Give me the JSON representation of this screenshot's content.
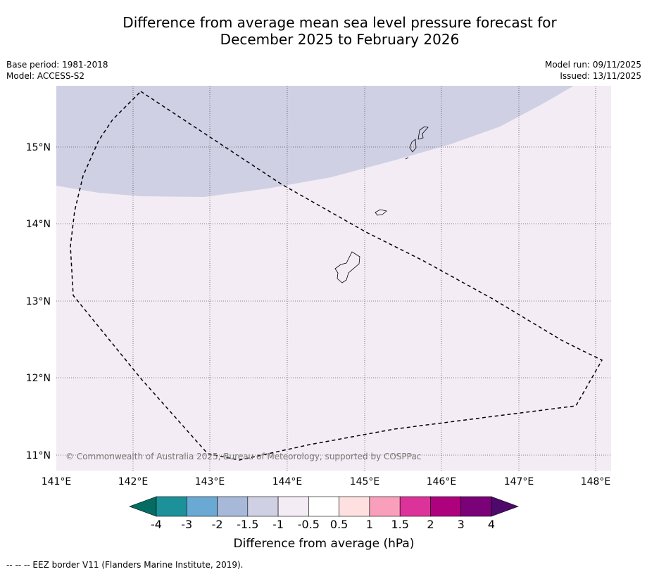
{
  "title": {
    "line1": "Difference from average mean sea level pressure forecast for",
    "line2": "December 2025 to February 2026"
  },
  "meta": {
    "base_period": "Base period: 1981-2018",
    "model": "Model: ACCESS-S2",
    "model_run": "Model run: 09/11/2025",
    "issued": "Issued: 13/11/2025"
  },
  "map": {
    "lon_labels": [
      "141°E",
      "142°E",
      "143°E",
      "144°E",
      "145°E",
      "146°E",
      "147°E",
      "148°E"
    ],
    "lat_labels": [
      "15°N",
      "14°N",
      "13°N",
      "12°N",
      "11°N"
    ],
    "credit": "© Commonwealth of Australia 2025, Bureau of Meteorology, supported by COSPPac",
    "colors": {
      "background_field": "#f4ecf4",
      "negative_field": "#cfd0e3",
      "grid": "#555555",
      "eez_border": "#000000",
      "land_outline": "#000000"
    }
  },
  "colorbar": {
    "title": "Difference from average (hPa)",
    "tick_labels": [
      "-4",
      "-3",
      "-2",
      "-1.5",
      "-1",
      "-0.5",
      "0.5",
      "1",
      "1.5",
      "2",
      "3",
      "4"
    ],
    "under_color": "#046c62",
    "over_color": "#4d0a6a",
    "colors": [
      "#1c9199",
      "#6aa9d3",
      "#a7b8d9",
      "#cfd0e3",
      "#f4ecf4",
      "#ffffff",
      "#fde0df",
      "#f99fbb",
      "#dc339b",
      "#ae017e",
      "#7a0177"
    ]
  },
  "footnote": "--  --  -- EEZ border V11 (Flanders Marine Institute, 2019)."
}
